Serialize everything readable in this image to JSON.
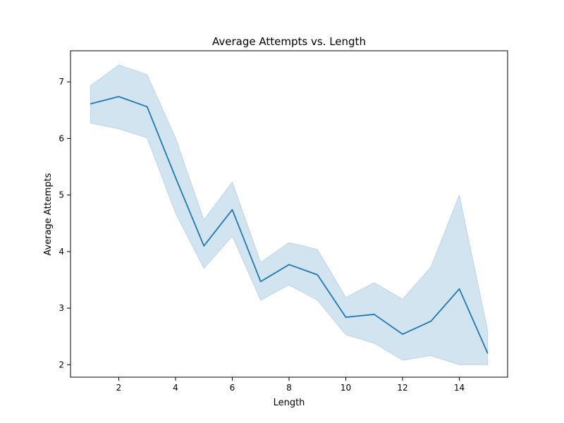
{
  "chart_data": {
    "type": "line",
    "title": "Average Attempts vs. Length",
    "xlabel": "Length",
    "ylabel": "Average Attempts",
    "xlim": [
      0.3,
      15.7
    ],
    "ylim": [
      1.78,
      7.55
    ],
    "xticks": [
      2,
      4,
      6,
      8,
      10,
      12,
      14
    ],
    "yticks": [
      2,
      3,
      4,
      5,
      6,
      7
    ],
    "grid": false,
    "colors": {
      "line": "#1f77b4",
      "band": "#1f77b4"
    },
    "series": [
      {
        "x": [
          1,
          2,
          3,
          4,
          5,
          6,
          7,
          8,
          9,
          10,
          11,
          12,
          13,
          14,
          15
        ],
        "y": [
          6.61,
          6.74,
          6.56,
          5.31,
          4.1,
          4.74,
          3.47,
          3.77,
          3.59,
          2.84,
          2.89,
          2.54,
          2.77,
          3.34,
          2.2
        ],
        "lower": [
          6.27,
          6.17,
          6.01,
          4.68,
          3.7,
          4.27,
          3.14,
          3.41,
          3.14,
          2.53,
          2.38,
          2.08,
          2.16,
          2.0,
          2.0
        ],
        "upper": [
          6.93,
          7.3,
          7.13,
          6.01,
          4.56,
          5.23,
          3.81,
          4.16,
          4.04,
          3.19,
          3.45,
          3.16,
          3.73,
          5.0,
          2.6
        ]
      }
    ]
  }
}
